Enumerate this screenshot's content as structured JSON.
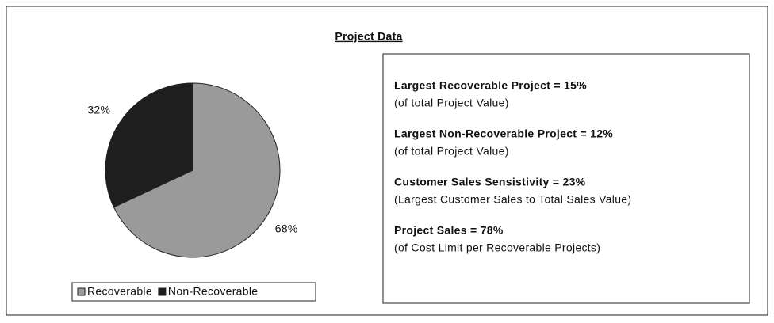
{
  "chart_data": {
    "type": "pie",
    "title": "Project Data",
    "categories": [
      "Recoverable",
      "Non-Recoverable"
    ],
    "values": [
      68,
      32
    ],
    "value_labels": [
      "68%",
      "32%"
    ],
    "colors": [
      "#9a9a9a",
      "#1e1e1e"
    ]
  },
  "info_box": [
    {
      "heading": "Largest Recoverable Project = 15%",
      "note": "(of total Project Value)"
    },
    {
      "heading": "Largest Non-Recoverable Project = 12%",
      "note": "(of total Project Value)"
    },
    {
      "heading": "Customer Sales Sensistivity = 23%",
      "note": "(Largest Customer Sales to Total Sales Value)"
    },
    {
      "heading": "Project Sales = 78%",
      "note": "(of Cost Limit per Recoverable Projects)"
    }
  ]
}
